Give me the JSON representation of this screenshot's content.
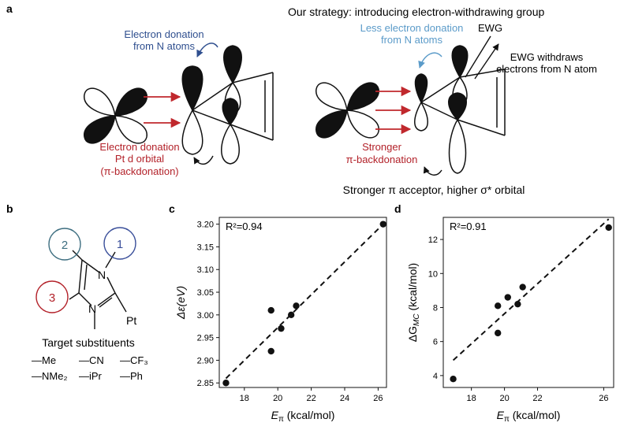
{
  "panel_a": {
    "label": "a",
    "strategy_title": "Our strategy: introducing electron-withdrawing group",
    "left": {
      "donation_n_line1": "Electron donation",
      "donation_n_line2": "from N atoms",
      "donation_pt_line1": "Electron donation",
      "donation_pt_line2": "Pt d orbital",
      "donation_pt_line3": "(π-backdonation)"
    },
    "right": {
      "less_donation_line1": "Less electron donation",
      "less_donation_line2": "from N atoms",
      "ewg": "EWG",
      "ewg_withdraws_line1": "EWG withdraws",
      "ewg_withdraws_line2": "electrons from N atom",
      "stronger_line1": "Stronger",
      "stronger_line2": "π-backdonation",
      "caption": "Stronger π acceptor, higher σ* orbital"
    }
  },
  "panel_b": {
    "label": "b",
    "site1": "1",
    "site2": "2",
    "site3": "3",
    "atom_n_top": "N",
    "atom_n_bottom": "N",
    "atom_pt": "Pt",
    "title": "Target substituents",
    "substituents": [
      "—Me",
      "—CN",
      "—CF₃",
      "—NMe₂",
      "—iPr",
      "—Ph"
    ]
  },
  "colors": {
    "blue_text": "#2f4f8f",
    "light_blue_text": "#5b9bc9",
    "red_text": "#b3222a",
    "arrow_red": "#c0282d",
    "circle_teal": "#3d6e80",
    "circle_blue": "#3a4f9a",
    "circle_red": "#b3222a"
  },
  "chart_data": [
    {
      "panel": "c",
      "type": "scatter",
      "xlabel_main": "E",
      "xlabel_sub": "π",
      "xlabel_unit": " (kcal/mol)",
      "ylabel": "Δε(eV)",
      "annotation": "R²=0.94",
      "xlim": [
        16.5,
        26.5
      ],
      "ylim": [
        2.84,
        3.215
      ],
      "xticks": [
        18,
        20,
        22,
        24,
        26
      ],
      "yticks": [
        2.85,
        2.9,
        2.95,
        3.0,
        3.05,
        3.1,
        3.15,
        3.2
      ],
      "ytick_labels": [
        "2.85",
        "2.90",
        "2.95",
        "3.00",
        "3.05",
        "3.10",
        "3.15",
        "3.20"
      ],
      "points": [
        {
          "x": 16.9,
          "y": 2.85
        },
        {
          "x": 19.6,
          "y": 2.92
        },
        {
          "x": 19.6,
          "y": 3.01
        },
        {
          "x": 20.2,
          "y": 2.97
        },
        {
          "x": 20.8,
          "y": 3.0
        },
        {
          "x": 21.1,
          "y": 3.02
        },
        {
          "x": 26.3,
          "y": 3.2
        }
      ],
      "fit": {
        "x": [
          16.9,
          26.3
        ],
        "y": [
          2.86,
          3.2
        ]
      },
      "grid": false
    },
    {
      "panel": "d",
      "type": "scatter",
      "xlabel_main": "E",
      "xlabel_sub": "π",
      "xlabel_unit": " (kcal/mol)",
      "ylabel_main": "ΔG",
      "ylabel_sub": "MC",
      "ylabel_unit": " (kcal/mol)",
      "annotation": "R²=0.91",
      "xlim": [
        16.3,
        26.6
      ],
      "ylim": [
        3.3,
        13.3
      ],
      "xticks": [
        18,
        20,
        22,
        26
      ],
      "yticks": [
        4,
        6,
        8,
        10,
        12
      ],
      "points": [
        {
          "x": 16.9,
          "y": 3.8
        },
        {
          "x": 19.6,
          "y": 6.5
        },
        {
          "x": 19.6,
          "y": 8.1
        },
        {
          "x": 20.2,
          "y": 8.6
        },
        {
          "x": 20.8,
          "y": 8.2
        },
        {
          "x": 21.1,
          "y": 9.2
        },
        {
          "x": 26.3,
          "y": 12.7
        }
      ],
      "fit": {
        "x": [
          16.9,
          26.3
        ],
        "y": [
          4.9,
          13.2
        ]
      },
      "grid": false
    }
  ]
}
